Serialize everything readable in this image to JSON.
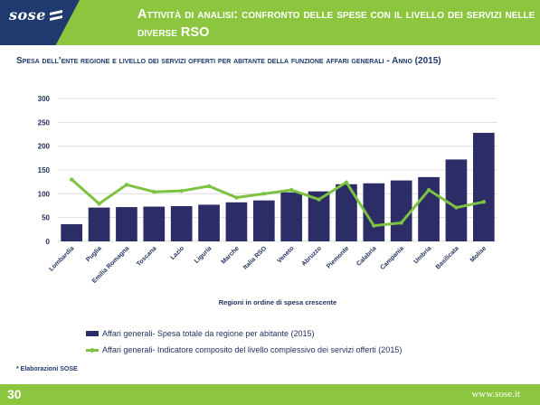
{
  "brand": {
    "name": "sose"
  },
  "slide": {
    "title": "Attività di analisi: confronto delle spese con il livello dei servizi nelle diverse RSO",
    "subtitle": "Spesa dell’ente regione e livello dei servizi offerti per abitante della funzione affari generali - Anno (2015)",
    "note": "* Elaborazioni SOSE",
    "page_number": "30",
    "website": "www.sose.it"
  },
  "colors": {
    "header_green": "#8cc63f",
    "brand_navy": "#1f3a6e",
    "bar": "#2c2c66",
    "line": "#7ec242"
  },
  "chart_data": {
    "type": "bar",
    "categories": [
      "Lombardia",
      "Puglia",
      "Emilia Romagna",
      "Toscana",
      "Lazio",
      "Liguria",
      "Marche",
      "Italia RSO",
      "Veneto",
      "Abruzzo",
      "Piemonte",
      "Calabria",
      "Campania",
      "Umbria",
      "Basilicata",
      "Molise"
    ],
    "series": [
      {
        "name": "Affari generali- Spesa totale da regione per abitante (2015)",
        "kind": "bar",
        "values": [
          36,
          71,
          72,
          73,
          74,
          77,
          82,
          86,
          103,
          105,
          120,
          122,
          128,
          135,
          172,
          228
        ]
      },
      {
        "name": "Affari generali- Indicatore composito del livello complessivo dei servizi offerti (2015)",
        "kind": "line",
        "values": [
          130,
          79,
          119,
          104,
          106,
          116,
          92,
          100,
          108,
          88,
          124,
          33,
          39,
          108,
          71,
          83
        ]
      }
    ],
    "xlabel": "Regioni in ordine di spesa crescente",
    "ylabel": "",
    "ylim": [
      0,
      300
    ],
    "yticks": [
      0,
      50,
      100,
      150,
      200,
      250,
      300
    ],
    "grid": true,
    "legend": "bottom"
  }
}
